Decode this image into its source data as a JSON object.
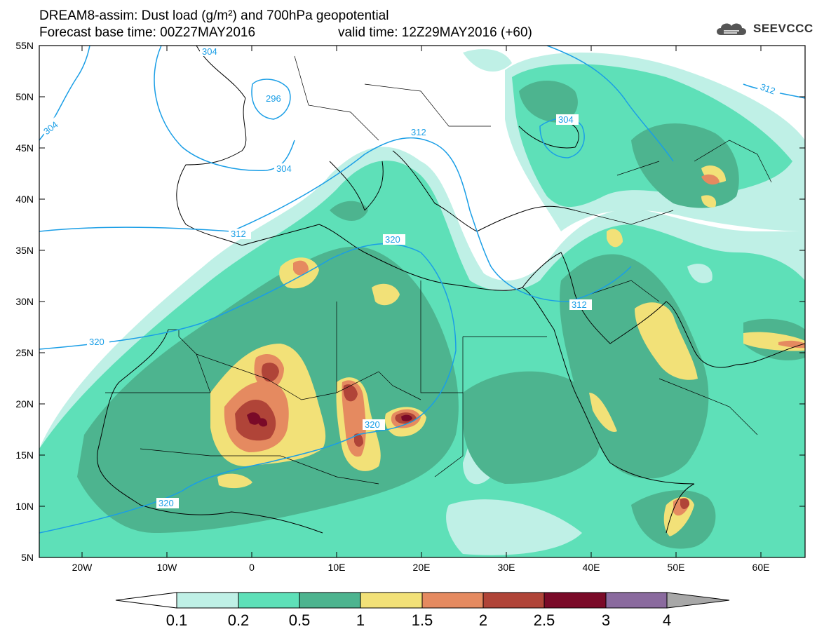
{
  "header": {
    "title_line1": "DREAM8-assim: Dust load (g/m²) and 700hPa geopotential",
    "forecast_base": "Forecast base time: 00Z27MAY2016",
    "valid_time": "valid time: 12Z29MAY2016 (+60)",
    "logo_text": "SEEVCCC"
  },
  "map": {
    "lat_labels": [
      "55N",
      "50N",
      "45N",
      "40N",
      "35N",
      "30N",
      "25N",
      "20N",
      "15N",
      "10N",
      "5N"
    ],
    "lon_labels": [
      "20W",
      "10W",
      "0",
      "10E",
      "20E",
      "30E",
      "40E",
      "50E",
      "60E"
    ],
    "contour_labels": [
      "304",
      "296",
      "304",
      "304",
      "312",
      "304",
      "312",
      "312",
      "320",
      "312",
      "320",
      "320",
      "320"
    ]
  },
  "colorbar": {
    "labels": [
      "0.1",
      "0.2",
      "0.5",
      "1",
      "1.5",
      "2",
      "2.5",
      "3",
      "4"
    ],
    "colors": [
      "#ffffff",
      "#bff0e6",
      "#5ee0b8",
      "#4db48f",
      "#f2e178",
      "#e58a60",
      "#b04438",
      "#7a0a28",
      "#8a6a9e",
      "#a8a8a8"
    ]
  },
  "colors": {
    "dust_lvl1": "#bff0e6",
    "dust_lvl2": "#5ee0b8",
    "dust_lvl3": "#4db48f",
    "dust_lvl4": "#f2e178",
    "dust_lvl5": "#e58a60",
    "dust_lvl6": "#b04438",
    "dust_lvl7": "#7a0a28",
    "contour": "#1a9ee6"
  }
}
